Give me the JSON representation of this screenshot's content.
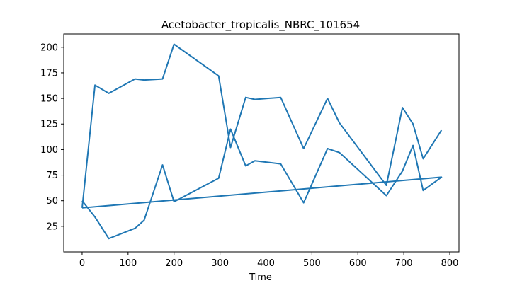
{
  "chart_data": {
    "type": "line",
    "title": "Acetobacter_tropicalis_NBRC_101654",
    "xlabel": "Time",
    "ylabel": "",
    "xlim": [
      -40,
      820
    ],
    "ylim": [
      0,
      213
    ],
    "xticks": [
      0,
      100,
      200,
      300,
      400,
      500,
      600,
      700,
      800
    ],
    "yticks": [
      25,
      50,
      75,
      100,
      125,
      150,
      175,
      200
    ],
    "grid": false,
    "color": "#1f77b4",
    "series": [
      {
        "x": [
          0,
          28,
          58,
          115,
          135,
          175,
          200,
          297,
          323,
          356,
          376,
          432,
          482,
          534,
          560,
          662,
          697,
          720,
          742,
          782,
          0
        ],
        "y": [
          50,
          34,
          13,
          23,
          31,
          85,
          49,
          72,
          120,
          84,
          89,
          86,
          48,
          101,
          97,
          55,
          79,
          104,
          60,
          73,
          43
        ]
      },
      {
        "x": [
          0,
          28,
          58,
          115,
          135,
          175,
          200,
          297,
          323,
          356,
          376,
          432,
          482,
          534,
          560,
          662,
          697,
          720,
          742,
          782
        ],
        "y": [
          43,
          163,
          155,
          169,
          168,
          169,
          203,
          172,
          102,
          151,
          149,
          151,
          101,
          150,
          126,
          65,
          141,
          125,
          91,
          119
        ]
      }
    ]
  }
}
